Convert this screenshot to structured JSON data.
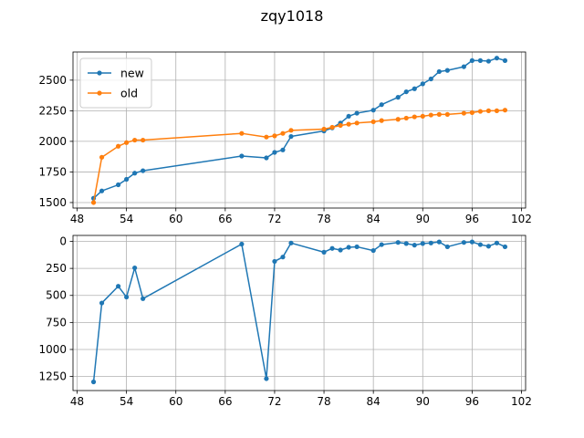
{
  "title": "zqy1018",
  "colors": {
    "new": "#1f77b4",
    "old": "#ff7f0e",
    "grid": "#b0b0b0",
    "axis": "#000000"
  },
  "chart_data": [
    {
      "type": "line",
      "xlim": [
        47.5,
        102.5
      ],
      "ylim": [
        1455,
        2730
      ],
      "xticks": [
        48,
        54,
        60,
        66,
        72,
        78,
        84,
        90,
        96,
        102
      ],
      "yticks": [
        1500,
        1750,
        2000,
        2250,
        2500
      ],
      "grid": true,
      "legend_position": "upper-left",
      "series": [
        {
          "name": "new",
          "color": "#1f77b4",
          "x": [
            50,
            51,
            53,
            54,
            55,
            56,
            68,
            71,
            72,
            73,
            74,
            78,
            79,
            80,
            81,
            82,
            84,
            85,
            87,
            88,
            89,
            90,
            91,
            92,
            93,
            95,
            96,
            97,
            98,
            99,
            100
          ],
          "y": [
            1535,
            1595,
            1645,
            1690,
            1740,
            1760,
            1880,
            1865,
            1910,
            1930,
            2040,
            2085,
            2110,
            2150,
            2205,
            2230,
            2255,
            2300,
            2360,
            2405,
            2430,
            2470,
            2510,
            2570,
            2580,
            2610,
            2660,
            2660,
            2655,
            2680,
            2660
          ]
        },
        {
          "name": "old",
          "color": "#ff7f0e",
          "x": [
            50,
            51,
            53,
            54,
            55,
            56,
            68,
            71,
            72,
            73,
            74,
            78,
            79,
            80,
            81,
            82,
            84,
            85,
            87,
            88,
            89,
            90,
            91,
            92,
            93,
            95,
            96,
            97,
            98,
            99,
            100
          ],
          "y": [
            1500,
            1870,
            1960,
            1990,
            2010,
            2010,
            2065,
            2035,
            2045,
            2065,
            2090,
            2100,
            2115,
            2130,
            2140,
            2150,
            2160,
            2170,
            2180,
            2190,
            2200,
            2205,
            2215,
            2220,
            2220,
            2230,
            2235,
            2245,
            2250,
            2250,
            2255
          ]
        }
      ]
    },
    {
      "type": "line",
      "xlim": [
        47.5,
        102.5
      ],
      "ylim": [
        1380,
        -55
      ],
      "y_inverted": true,
      "xticks": [
        48,
        54,
        60,
        66,
        72,
        78,
        84,
        90,
        96,
        102
      ],
      "yticks": [
        0,
        250,
        500,
        750,
        1000,
        1250
      ],
      "grid": true,
      "series": [
        {
          "color": "#1f77b4",
          "x": [
            50,
            51,
            53,
            54,
            55,
            56,
            68,
            71,
            72,
            73,
            74,
            78,
            79,
            80,
            81,
            82,
            84,
            85,
            87,
            88,
            89,
            90,
            91,
            92,
            93,
            95,
            96,
            97,
            98,
            99,
            100
          ],
          "y": [
            1300,
            570,
            415,
            515,
            245,
            530,
            25,
            1270,
            185,
            145,
            15,
            100,
            65,
            80,
            55,
            50,
            85,
            30,
            10,
            20,
            35,
            20,
            15,
            5,
            50,
            10,
            5,
            30,
            45,
            15,
            50
          ]
        }
      ]
    }
  ]
}
